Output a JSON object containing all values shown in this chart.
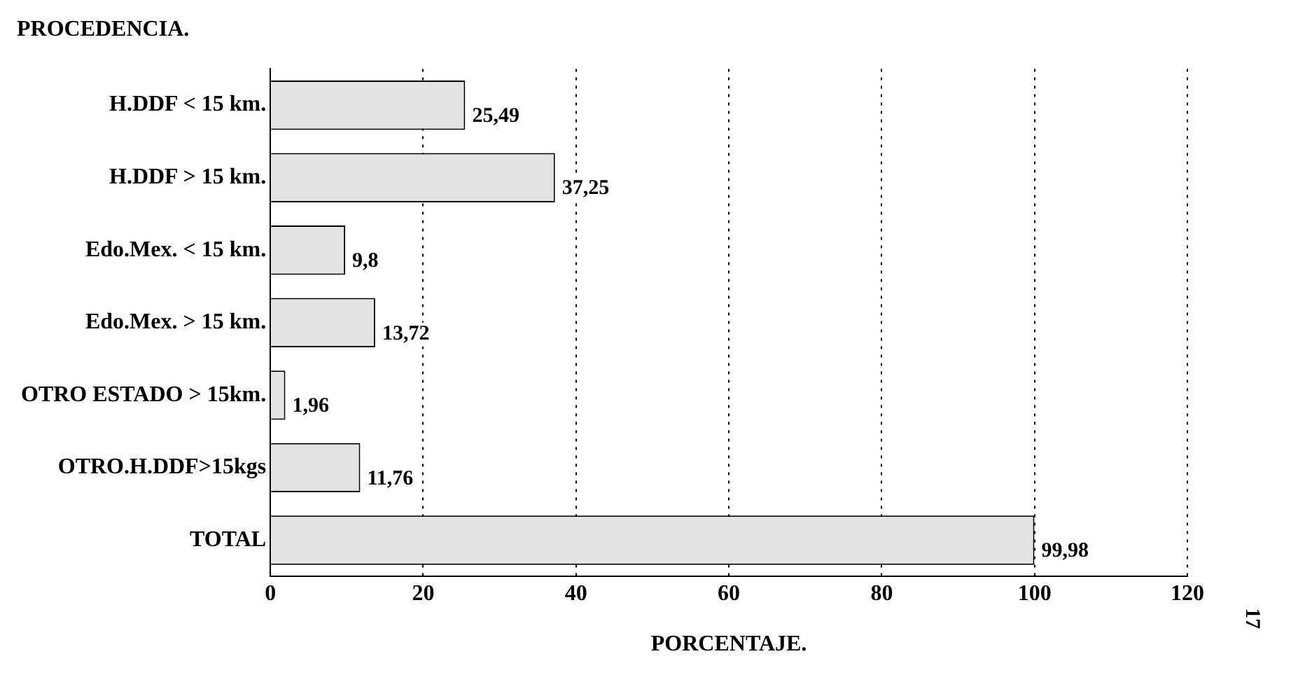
{
  "chart_data": {
    "type": "bar",
    "orientation": "horizontal",
    "title": "PROCEDENCIA.",
    "xlabel": "PORCENTAJE.",
    "categories": [
      "H.DDF < 15 km.",
      "H.DDF > 15 km.",
      "Edo.Mex. < 15 km.",
      "Edo.Mex. > 15 km.",
      "OTRO ESTADO > 15km.",
      "OTRO.H.DDF>15kgs",
      "TOTAL"
    ],
    "values": [
      25.49,
      37.25,
      9.8,
      13.72,
      1.96,
      11.76,
      99.98
    ],
    "value_labels": [
      "25,49",
      "37,25",
      "9,8",
      "13,72",
      "1,96",
      "11,76",
      "99,98"
    ],
    "color": "#e3e3e3",
    "xlim": [
      0,
      120
    ],
    "xticks": [
      0,
      20,
      40,
      60,
      80,
      100,
      120
    ],
    "grid": "x",
    "legend": false,
    "annotations": [
      "17"
    ]
  }
}
